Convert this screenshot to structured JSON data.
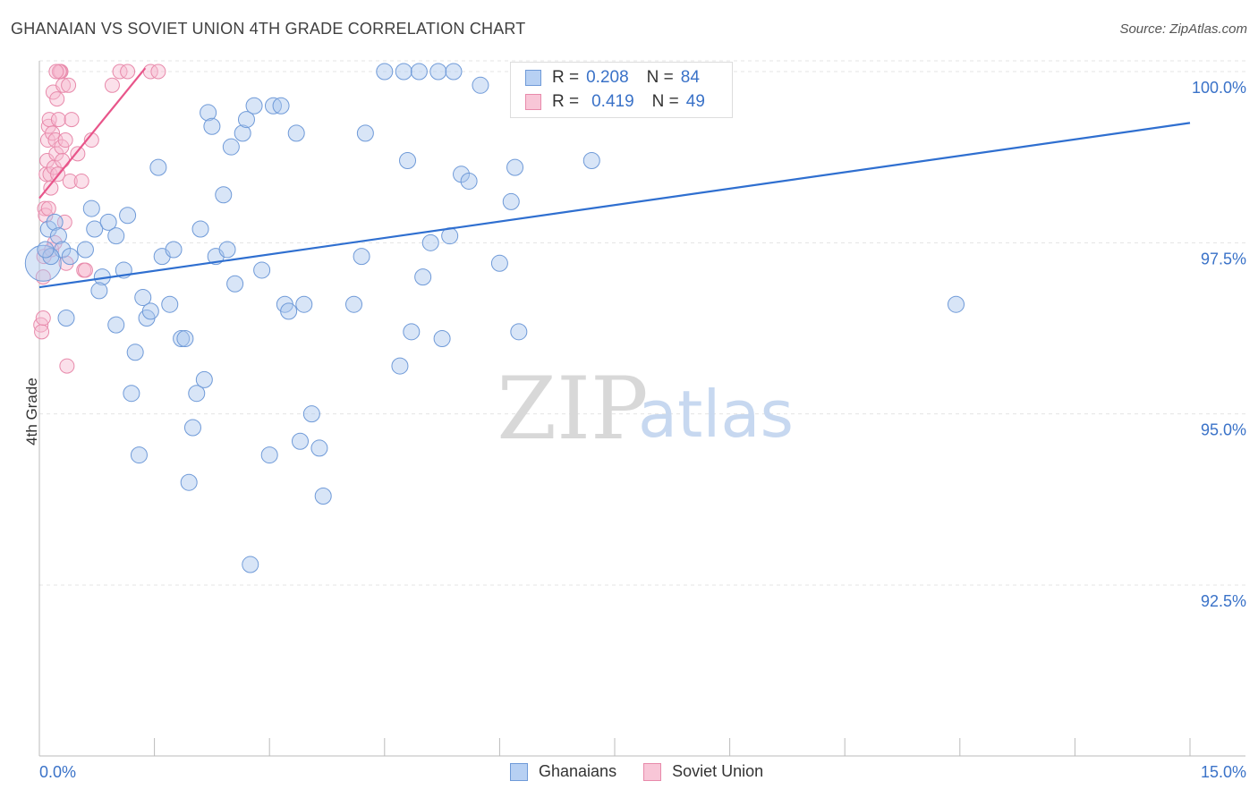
{
  "header": {
    "title": "GHANAIAN VS SOVIET UNION 4TH GRADE CORRELATION CHART",
    "source": "Source: ZipAtlas.com"
  },
  "watermark": {
    "zip": "ZIP",
    "atlas": "atlas"
  },
  "legend": {
    "rows": [
      {
        "r_label": "R =",
        "r_value": "0.208",
        "n_label": "N =",
        "n_value": "84"
      },
      {
        "r_label": "R =",
        "r_value": "0.419",
        "n_label": "N =",
        "n_value": "49"
      }
    ]
  },
  "bottom_legend": {
    "ghanaians": "Ghanaians",
    "soviet": "Soviet Union"
  },
  "colors": {
    "blue_fill": "#a9c5ee",
    "blue_stroke": "#6f9ad8",
    "blue_line": "#2f6fd0",
    "pink_fill": "#f6bbd0",
    "pink_stroke": "#e88aab",
    "pink_line": "#e8558a",
    "axis_text": "#3a72c8",
    "grid": "#e4e4e4"
  },
  "chart_data": {
    "type": "scatter",
    "title": "GHANAIAN VS SOVIET UNION 4TH GRADE CORRELATION CHART",
    "xlabel": "",
    "ylabel": "4th Grade",
    "xlim": [
      0,
      15
    ],
    "ylim": [
      90,
      100.3
    ],
    "x_tick_labels": [
      "0.0%",
      "15.0%"
    ],
    "y_ticks": [
      92.5,
      95.0,
      97.5,
      100.0
    ],
    "y_tick_labels": [
      "92.5%",
      "95.0%",
      "97.5%",
      "100.0%"
    ],
    "series": [
      {
        "name": "Ghanaians",
        "r": 0.208,
        "n": 84,
        "trend": {
          "x": [
            0,
            15
          ],
          "y": [
            96.85,
            99.25
          ]
        },
        "points": [
          [
            0.05,
            97.2
          ],
          [
            0.12,
            97.7
          ],
          [
            0.2,
            97.8
          ],
          [
            0.25,
            97.6
          ],
          [
            0.35,
            96.4
          ],
          [
            0.6,
            97.4
          ],
          [
            0.68,
            98.0
          ],
          [
            0.72,
            97.7
          ],
          [
            0.82,
            97.0
          ],
          [
            0.9,
            97.8
          ],
          [
            0.3,
            97.4
          ],
          [
            0.4,
            97.3
          ],
          [
            0.78,
            96.8
          ],
          [
            1.0,
            97.6
          ],
          [
            1.1,
            97.1
          ],
          [
            1.15,
            97.9
          ],
          [
            1.0,
            96.3
          ],
          [
            1.25,
            95.9
          ],
          [
            1.35,
            96.7
          ],
          [
            1.4,
            96.4
          ],
          [
            1.2,
            95.3
          ],
          [
            1.3,
            94.4
          ],
          [
            1.45,
            96.5
          ],
          [
            1.55,
            98.6
          ],
          [
            1.6,
            97.3
          ],
          [
            1.7,
            96.6
          ],
          [
            1.75,
            97.4
          ],
          [
            1.85,
            96.1
          ],
          [
            1.9,
            96.1
          ],
          [
            1.95,
            94.0
          ],
          [
            2.0,
            94.8
          ],
          [
            2.05,
            95.3
          ],
          [
            2.1,
            97.7
          ],
          [
            2.15,
            95.5
          ],
          [
            2.2,
            99.4
          ],
          [
            2.25,
            99.2
          ],
          [
            2.3,
            97.3
          ],
          [
            2.4,
            98.2
          ],
          [
            2.45,
            97.4
          ],
          [
            2.5,
            98.9
          ],
          [
            2.55,
            96.9
          ],
          [
            2.65,
            99.1
          ],
          [
            2.7,
            99.3
          ],
          [
            2.75,
            92.8
          ],
          [
            2.8,
            99.5
          ],
          [
            2.9,
            97.1
          ],
          [
            3.0,
            94.4
          ],
          [
            3.05,
            99.5
          ],
          [
            3.15,
            99.5
          ],
          [
            3.2,
            96.6
          ],
          [
            3.25,
            96.5
          ],
          [
            3.35,
            99.1
          ],
          [
            3.4,
            94.6
          ],
          [
            3.45,
            96.6
          ],
          [
            3.55,
            95.0
          ],
          [
            3.65,
            94.5
          ],
          [
            3.7,
            93.8
          ],
          [
            4.1,
            96.6
          ],
          [
            4.2,
            97.3
          ],
          [
            4.25,
            99.1
          ],
          [
            4.5,
            100.0
          ],
          [
            4.7,
            95.7
          ],
          [
            4.75,
            100.0
          ],
          [
            4.8,
            98.7
          ],
          [
            4.85,
            96.2
          ],
          [
            4.95,
            100.0
          ],
          [
            5.0,
            97.0
          ],
          [
            5.1,
            97.5
          ],
          [
            5.2,
            100.0
          ],
          [
            5.25,
            96.1
          ],
          [
            5.35,
            97.6
          ],
          [
            5.4,
            100.0
          ],
          [
            5.5,
            98.5
          ],
          [
            5.6,
            98.4
          ],
          [
            5.75,
            99.8
          ],
          [
            6.0,
            97.2
          ],
          [
            6.15,
            98.1
          ],
          [
            6.2,
            98.6
          ],
          [
            6.25,
            96.2
          ],
          [
            6.9,
            100.0
          ],
          [
            7.2,
            98.7
          ],
          [
            11.95,
            96.6
          ],
          [
            0.15,
            97.3
          ],
          [
            0.08,
            97.4
          ]
        ]
      },
      {
        "name": "Soviet Union",
        "r": 0.419,
        "n": 49,
        "trend": {
          "x": [
            0,
            1.38
          ],
          "y": [
            98.15,
            100.05
          ]
        },
        "points": [
          [
            0.02,
            96.3
          ],
          [
            0.03,
            96.2
          ],
          [
            0.05,
            97.0
          ],
          [
            0.06,
            97.3
          ],
          [
            0.07,
            98.0
          ],
          [
            0.08,
            97.9
          ],
          [
            0.09,
            98.5
          ],
          [
            0.1,
            98.7
          ],
          [
            0.11,
            99.0
          ],
          [
            0.12,
            99.2
          ],
          [
            0.13,
            99.3
          ],
          [
            0.14,
            98.5
          ],
          [
            0.15,
            98.3
          ],
          [
            0.16,
            97.4
          ],
          [
            0.17,
            99.1
          ],
          [
            0.18,
            99.7
          ],
          [
            0.19,
            98.6
          ],
          [
            0.2,
            97.5
          ],
          [
            0.21,
            99.0
          ],
          [
            0.22,
            98.8
          ],
          [
            0.23,
            99.6
          ],
          [
            0.24,
            98.5
          ],
          [
            0.25,
            99.3
          ],
          [
            0.27,
            100.0
          ],
          [
            0.28,
            100.0
          ],
          [
            0.29,
            98.9
          ],
          [
            0.3,
            98.7
          ],
          [
            0.31,
            99.8
          ],
          [
            0.33,
            97.8
          ],
          [
            0.34,
            99.0
          ],
          [
            0.36,
            95.7
          ],
          [
            0.38,
            99.8
          ],
          [
            0.4,
            98.4
          ],
          [
            0.42,
            99.3
          ],
          [
            0.5,
            98.8
          ],
          [
            0.55,
            98.4
          ],
          [
            0.58,
            97.1
          ],
          [
            0.6,
            97.1
          ],
          [
            0.68,
            99.0
          ],
          [
            0.95,
            99.8
          ],
          [
            1.05,
            100.0
          ],
          [
            1.15,
            100.0
          ],
          [
            1.45,
            100.0
          ],
          [
            1.55,
            100.0
          ],
          [
            0.26,
            100.0
          ],
          [
            0.12,
            98.0
          ],
          [
            0.05,
            96.4
          ],
          [
            0.22,
            100.0
          ],
          [
            0.35,
            97.2
          ]
        ]
      }
    ]
  }
}
